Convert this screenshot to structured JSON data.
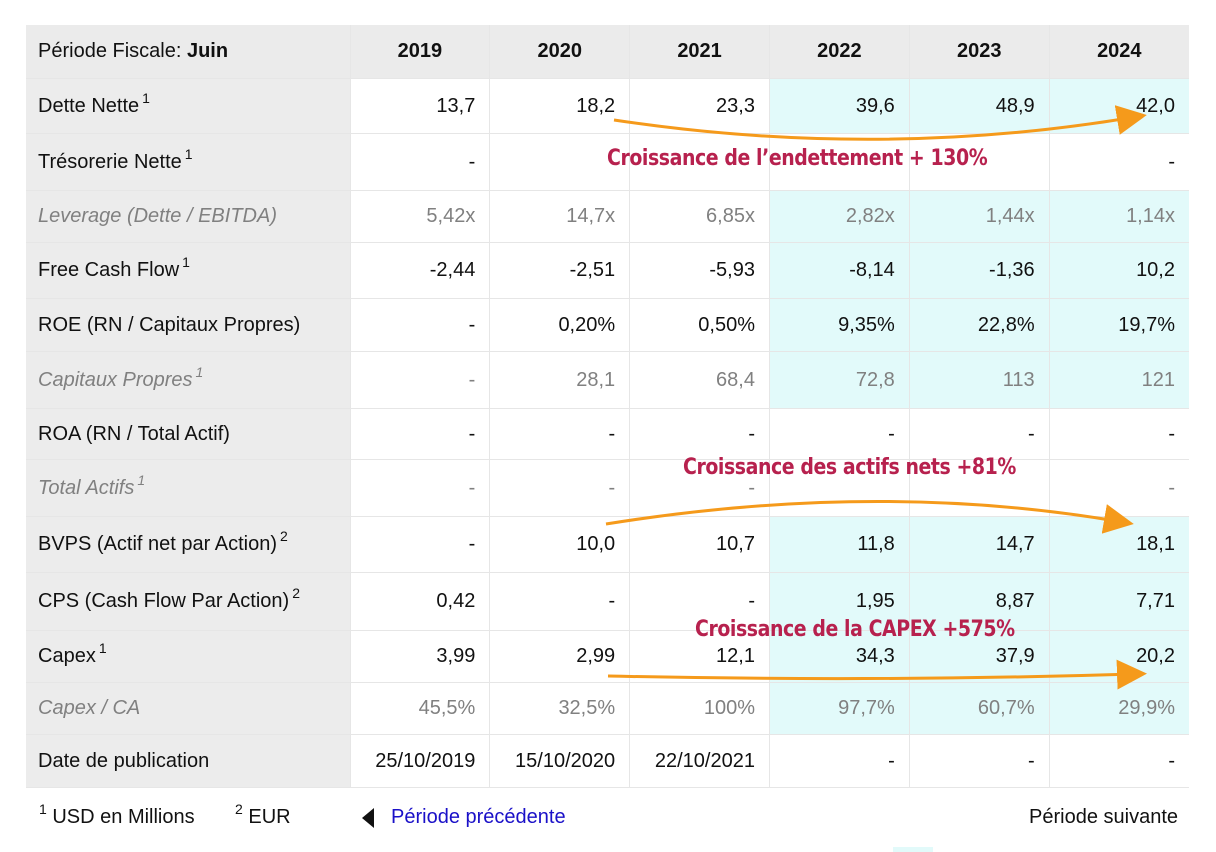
{
  "header": {
    "period_label": "Période Fiscale:",
    "period_value": "Juin",
    "years": [
      "2019",
      "2020",
      "2021",
      "2022",
      "2023",
      "2024"
    ]
  },
  "rows": [
    {
      "label": "Dette Nette",
      "sup": "1",
      "values": [
        "13,7",
        "18,2",
        "23,3",
        "39,6",
        "48,9",
        "42,0"
      ]
    },
    {
      "label": "Trésorerie Nette",
      "sup": "1",
      "values": [
        "-",
        "",
        "",
        "",
        "",
        "-"
      ]
    },
    {
      "label": "Leverage (Dette / EBITDA)",
      "sup": "",
      "values": [
        "5,42x",
        "14,7x",
        "6,85x",
        "2,82x",
        "1,44x",
        "1,14x"
      ]
    },
    {
      "label": "Free Cash Flow",
      "sup": "1",
      "values": [
        "-2,44",
        "-2,51",
        "-5,93",
        "-8,14",
        "-1,36",
        "10,2"
      ]
    },
    {
      "label": "ROE (RN / Capitaux Propres)",
      "sup": "",
      "values": [
        "-",
        "0,20%",
        "0,50%",
        "9,35%",
        "22,8%",
        "19,7%"
      ]
    },
    {
      "label": "Capitaux Propres",
      "sup": "1",
      "values": [
        "-",
        "28,1",
        "68,4",
        "72,8",
        "113",
        "121"
      ]
    },
    {
      "label": "ROA (RN / Total Actif)",
      "sup": "",
      "values": [
        "-",
        "-",
        "-",
        "-",
        "-",
        "-"
      ]
    },
    {
      "label": "Total Actifs",
      "sup": "1",
      "values": [
        "-",
        "-",
        "-",
        "",
        "",
        "-"
      ]
    },
    {
      "label": "BVPS (Actif net par Action)",
      "sup": "2",
      "values": [
        "-",
        "10,0",
        "10,7",
        "11,8",
        "14,7",
        "18,1"
      ]
    },
    {
      "label": "CPS (Cash Flow Par Action)",
      "sup": "2",
      "values": [
        "0,42",
        "-",
        "-",
        "1,95",
        "8,87",
        "7,71"
      ]
    },
    {
      "label": "Capex",
      "sup": "1",
      "values": [
        "3,99",
        "2,99",
        "12,1",
        "34,3",
        "37,9",
        "20,2"
      ]
    },
    {
      "label": "Capex / CA",
      "sup": "",
      "values": [
        "45,5%",
        "32,5%",
        "100%",
        "97,7%",
        "60,7%",
        "29,9%"
      ]
    },
    {
      "label": "Date de publication",
      "sup": "",
      "values": [
        "25/10/2019",
        "15/10/2020",
        "22/10/2021",
        "-",
        "-",
        "-"
      ]
    }
  ],
  "footer": {
    "note1_sup": "1",
    "note1_text": "USD en Millions",
    "note2_sup": "2",
    "note2_text": "EUR",
    "prev_link": "Période précédente",
    "next_link": "Période suivante"
  },
  "annotations": {
    "debt": "Croissance de l’endettement + 130%",
    "assets": "Croissance des actifs nets +81%",
    "capex": "Croissance de la CAPEX +575%"
  },
  "colors": {
    "highlight": "#e2fafa",
    "annotation_text": "#b7214e",
    "arrow": "#f59a1b",
    "link": "#1a10c8"
  }
}
